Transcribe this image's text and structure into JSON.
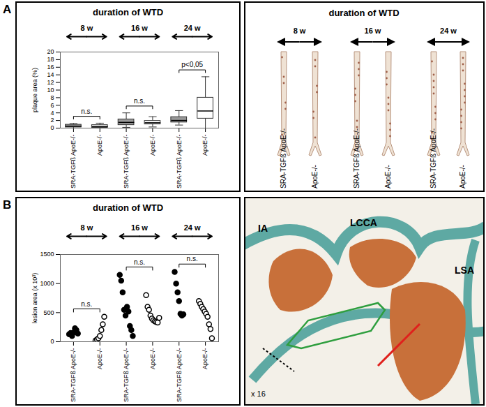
{
  "panel_labels": [
    "A",
    "B"
  ],
  "chart_data": [
    {
      "type": "box",
      "title": "duration of WTD",
      "groups": [
        "8 w",
        "16 w",
        "24 w"
      ],
      "categories": [
        "SRA-TGFß ApoE-/-",
        "ApoE-/-",
        "SRA-TGFß ApoE-/-",
        "ApoE-/-",
        "SRA-TGFß ApoE-/-",
        "ApoE-/-"
      ],
      "ylabel": "plaque area (%)",
      "ylim": [
        0,
        20
      ],
      "yticks": [
        0,
        2,
        4,
        6,
        8,
        10,
        12,
        14,
        16,
        18,
        20
      ],
      "boxes": [
        {
          "min": 0,
          "q1": 0.2,
          "median": 0.5,
          "q3": 0.9,
          "max": 1.2
        },
        {
          "min": 0,
          "q1": 0.1,
          "median": 0.4,
          "q3": 0.8,
          "max": 1.3
        },
        {
          "min": 0.2,
          "q1": 0.8,
          "median": 1.5,
          "q3": 2.3,
          "max": 4.0
        },
        {
          "min": 0.3,
          "q1": 1.0,
          "median": 1.4,
          "q3": 1.9,
          "max": 3.0
        },
        {
          "min": 0.8,
          "q1": 1.5,
          "median": 2.0,
          "q3": 2.9,
          "max": 4.6
        },
        {
          "min": 0,
          "q1": 2.5,
          "median": 4.5,
          "q3": 8.0,
          "max": 13.5
        }
      ],
      "colors": [
        "#999999",
        "#ffffff",
        "#999999",
        "#ffffff",
        "#999999",
        "#ffffff"
      ],
      "annotations": [
        "n.s.",
        "n.s.",
        "p<0,05"
      ]
    },
    {
      "type": "scatter",
      "title": "duration of WTD",
      "groups": [
        "8 w",
        "16 w",
        "24 w"
      ],
      "categories": [
        "SRA-TGFß ApoE-/-",
        "ApoE-/-",
        "SRA-TGFß ApoE-/-",
        "ApoE-/-",
        "SRA-TGFß ApoE-/-",
        "ApoE-/-"
      ],
      "ylabel": "lesion area (x 10³)",
      "ylim": [
        0,
        1500
      ],
      "yticks": [
        0,
        500,
        1000,
        1500
      ],
      "values": [
        [
          130,
          150,
          100,
          160,
          230,
          200,
          140
        ],
        [
          20,
          40,
          60,
          100,
          200,
          300,
          430
        ],
        [
          1150,
          1050,
          850,
          550,
          450,
          600,
          520,
          270,
          200,
          100
        ],
        [
          800,
          600,
          550,
          450,
          400,
          370,
          350,
          340,
          330,
          410
        ],
        [
          1200,
          1000,
          850,
          700,
          480,
          450,
          470
        ],
        [
          700,
          650,
          600,
          560,
          520,
          480,
          430,
          300,
          220,
          60
        ]
      ],
      "colors": [
        "#000000",
        "#ffffff",
        "#000000",
        "#ffffff",
        "#000000",
        "#ffffff"
      ],
      "marker": "circle",
      "annotations": [
        "n.s.",
        "n.s.",
        "n.s."
      ]
    }
  ],
  "images": [
    {
      "title": "duration of WTD",
      "groups": [
        "8 w",
        "16 w",
        "24 w"
      ],
      "labels": [
        "SRA-TGFß ApoE-/-",
        "ApoE-/-",
        "SRA-TGFß ApoE-/-",
        "ApoE-/-",
        "SRA-TGFß ApoE-/-",
        "ApoE-/-"
      ]
    },
    {
      "labels": [
        "IA",
        "LCCA",
        "LSA"
      ],
      "magnification": "x 16"
    }
  ]
}
